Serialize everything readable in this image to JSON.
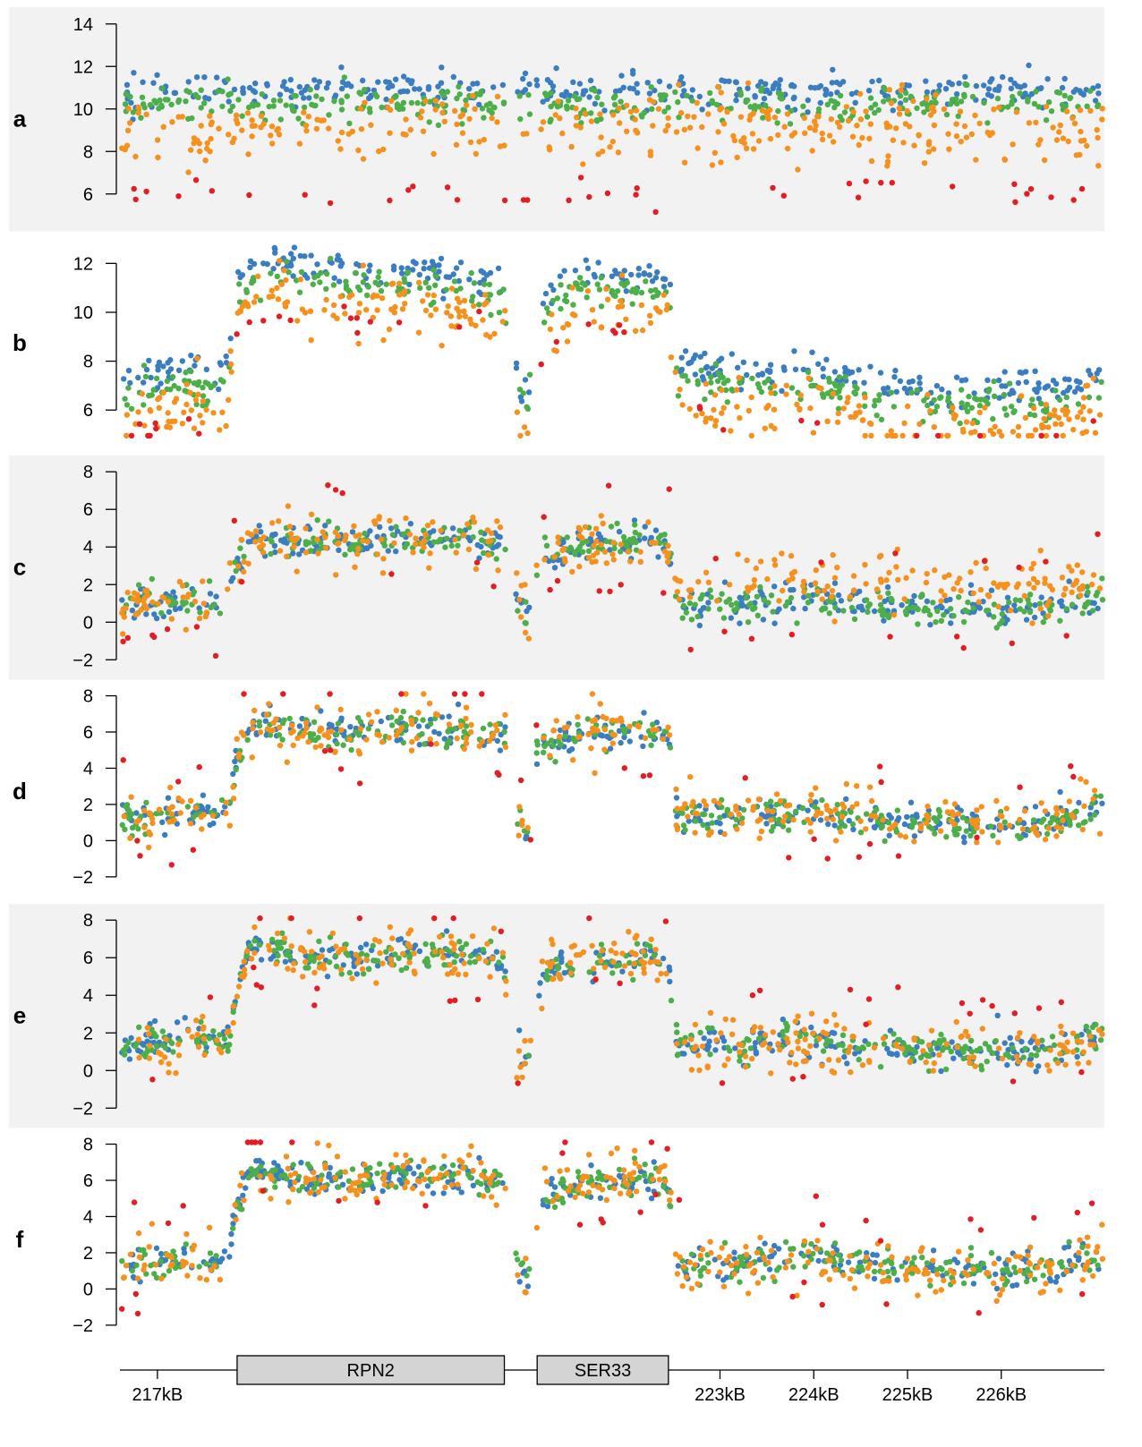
{
  "chart_data": {
    "type": "scatter",
    "title": "",
    "xlabel": "",
    "grid": false,
    "legend": "none",
    "x_unit": "kB",
    "xlim": [
      216.6,
      227.1
    ],
    "x_ticks": [
      {
        "value": 217,
        "label": "217kB"
      },
      {
        "value": 223,
        "label": "223kB"
      },
      {
        "value": 224,
        "label": "224kB"
      },
      {
        "value": 225,
        "label": "225kB"
      },
      {
        "value": 226,
        "label": "226kB"
      }
    ],
    "genes": [
      {
        "name": "RPN2",
        "start": 217.85,
        "end": 220.7
      },
      {
        "name": "SER33",
        "start": 221.05,
        "end": 222.45
      }
    ],
    "colors": {
      "blue": "#3A7DC1",
      "green": "#4CAF49",
      "orange": "#F7911E",
      "red": "#E31D24",
      "panel_band": "#F2F2F2"
    },
    "series_colors": [
      "#3A7DC1",
      "#4CAF49",
      "#F7911E",
      "#E31D24"
    ],
    "panels": [
      {
        "label": "a",
        "ylim": [
          5.0,
          14.2
        ],
        "yticks": [
          "6",
          "8",
          "10",
          "12",
          "14"
        ],
        "ytick_values": [
          6,
          8,
          10,
          12,
          14
        ]
      },
      {
        "label": "b",
        "ylim": [
          4.8,
          12.8
        ],
        "yticks": [
          "6",
          "8",
          "10",
          "12"
        ],
        "ytick_values": [
          6,
          8,
          10,
          12
        ]
      },
      {
        "label": "c",
        "ylim": [
          -2.2,
          8.2
        ],
        "yticks": [
          "−2",
          "0",
          "2",
          "4",
          "6",
          "8"
        ],
        "ytick_values": [
          -2,
          0,
          2,
          4,
          6,
          8
        ]
      },
      {
        "label": "d",
        "ylim": [
          -2.6,
          8.2
        ],
        "yticks": [
          "−2",
          "0",
          "2",
          "4",
          "6",
          "8"
        ],
        "ytick_values": [
          -2,
          0,
          2,
          4,
          6,
          8
        ]
      },
      {
        "label": "e",
        "ylim": [
          -2.2,
          8.2
        ],
        "yticks": [
          "−2",
          "0",
          "2",
          "4",
          "6",
          "8"
        ],
        "ytick_values": [
          -2,
          0,
          2,
          4,
          6,
          8
        ]
      },
      {
        "label": "f",
        "ylim": [
          -2.6,
          8.2
        ],
        "yticks": [
          "−2",
          "0",
          "2",
          "4",
          "6",
          "8"
        ],
        "ytick_values": [
          -2,
          0,
          2,
          4,
          6,
          8
        ]
      }
    ],
    "profile_gene_body": [
      [
        216.6,
        1.2
      ],
      [
        217.0,
        1.4
      ],
      [
        217.3,
        1.7
      ],
      [
        217.6,
        1.5
      ],
      [
        217.75,
        1.8
      ],
      [
        217.85,
        4.6
      ],
      [
        218.0,
        6.6
      ],
      [
        218.3,
        6.3
      ],
      [
        218.6,
        6.0
      ],
      [
        219.0,
        6.0
      ],
      [
        219.5,
        6.2
      ],
      [
        220.0,
        6.2
      ],
      [
        220.4,
        6.0
      ],
      [
        220.7,
        5.8
      ],
      [
        220.8,
        1.8
      ],
      [
        220.95,
        0.4
      ],
      [
        221.05,
        4.8
      ],
      [
        221.3,
        5.6
      ],
      [
        221.8,
        5.9
      ],
      [
        222.2,
        6.0
      ],
      [
        222.45,
        5.8
      ],
      [
        222.55,
        1.2
      ],
      [
        223.0,
        1.4
      ],
      [
        223.5,
        1.6
      ],
      [
        224.0,
        1.7
      ],
      [
        224.5,
        1.3
      ],
      [
        225.0,
        1.1
      ],
      [
        225.5,
        1.0
      ],
      [
        226.0,
        1.0
      ],
      [
        226.5,
        0.9
      ],
      [
        226.8,
        1.6
      ],
      [
        227.1,
        2.0
      ]
    ],
    "profile_intensity": [
      [
        216.6,
        6.2
      ],
      [
        217.0,
        6.8
      ],
      [
        217.3,
        7.2
      ],
      [
        217.6,
        6.4
      ],
      [
        217.75,
        7.0
      ],
      [
        217.85,
        10.8
      ],
      [
        218.2,
        11.4
      ],
      [
        218.8,
        11.2
      ],
      [
        219.5,
        11.0
      ],
      [
        220.0,
        11.0
      ],
      [
        220.5,
        10.6
      ],
      [
        220.7,
        10.2
      ],
      [
        220.8,
        6.8
      ],
      [
        220.95,
        6.0
      ],
      [
        221.05,
        9.4
      ],
      [
        221.5,
        11.0
      ],
      [
        222.0,
        10.8
      ],
      [
        222.45,
        10.8
      ],
      [
        222.55,
        7.2
      ],
      [
        223.0,
        6.8
      ],
      [
        223.5,
        6.8
      ],
      [
        224.0,
        7.0
      ],
      [
        224.5,
        6.6
      ],
      [
        225.0,
        6.2
      ],
      [
        225.5,
        6.0
      ],
      [
        226.0,
        6.2
      ],
      [
        226.5,
        6.0
      ],
      [
        226.8,
        6.4
      ],
      [
        227.1,
        7.0
      ]
    ],
    "panel_a_series_means": {
      "blue": 10.9,
      "green": 10.2,
      "orange": 9.0,
      "red": 6.0
    },
    "points_per_series": 330
  }
}
